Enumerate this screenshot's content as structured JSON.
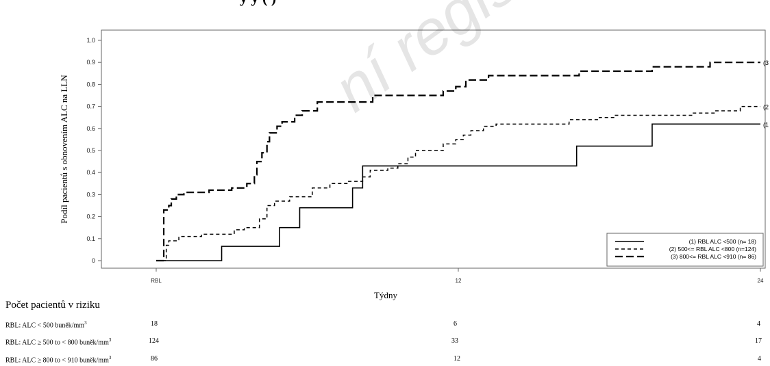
{
  "header": {
    "title_fragment": "y               y          (    )"
  },
  "watermark": {
    "text": "ní registrován"
  },
  "risk_table": {
    "title": "Počet pacientů v riziku",
    "rows": [
      {
        "label": "RBL: ALC < 500 buněk/mm",
        "sup": "3",
        "values": [
          "18",
          "6",
          "4"
        ]
      },
      {
        "label": "RBL: ALC ≥ 500 to < 800 buněk/mm",
        "sup": "3",
        "values": [
          "124",
          "33",
          "17"
        ]
      },
      {
        "label": "RBL: ALC ≥ 800 to < 910 buněk/mm",
        "sup": "3",
        "values": [
          "86",
          "12",
          "4"
        ]
      }
    ]
  },
  "chart_data": {
    "type": "line",
    "step": true,
    "title": "",
    "xlabel": "Týdny",
    "ylabel": "Podíl pacientů  s obnovením ALC na LLN",
    "xlim": [
      0,
      24
    ],
    "ylim": [
      0,
      1.0
    ],
    "x_ticks": [
      {
        "value": 0,
        "label": "RBL"
      },
      {
        "value": 12,
        "label": "12"
      },
      {
        "value": 24,
        "label": "24"
      }
    ],
    "y_ticks": [
      "0",
      "0.1",
      "0.2",
      "0.3",
      "0.4",
      "0.5",
      "0.6",
      "0.7",
      "0.8",
      "0.9",
      "1.0"
    ],
    "grid": false,
    "legend_position": "bottom-right",
    "series": [
      {
        "name": "(1) RBL ALC <500 (n= 18)",
        "end_label": "(1",
        "dash": "solid",
        "points": [
          [
            0,
            0
          ],
          [
            0.2,
            0
          ],
          [
            2.6,
            0
          ],
          [
            2.6,
            0.065
          ],
          [
            4.9,
            0.065
          ],
          [
            4.9,
            0.15
          ],
          [
            5.7,
            0.15
          ],
          [
            5.7,
            0.24
          ],
          [
            7.8,
            0.24
          ],
          [
            7.8,
            0.33
          ],
          [
            8.2,
            0.33
          ],
          [
            8.2,
            0.43
          ],
          [
            16.7,
            0.43
          ],
          [
            16.7,
            0.52
          ],
          [
            19.7,
            0.52
          ],
          [
            19.7,
            0.62
          ],
          [
            24,
            0.62
          ]
        ]
      },
      {
        "name": "(2) 500<= RBL ALC <800 (n=124)",
        "end_label": "(2",
        "dash": "short",
        "points": [
          [
            0,
            0
          ],
          [
            0.3,
            0
          ],
          [
            0.4,
            0.07
          ],
          [
            0.5,
            0.09
          ],
          [
            0.9,
            0.11
          ],
          [
            1.8,
            0.12
          ],
          [
            3.1,
            0.14
          ],
          [
            3.5,
            0.15
          ],
          [
            4.1,
            0.19
          ],
          [
            4.4,
            0.25
          ],
          [
            4.7,
            0.27
          ],
          [
            5.3,
            0.29
          ],
          [
            6.2,
            0.33
          ],
          [
            6.9,
            0.35
          ],
          [
            7.6,
            0.36
          ],
          [
            8.2,
            0.38
          ],
          [
            8.5,
            0.41
          ],
          [
            9.2,
            0.42
          ],
          [
            9.6,
            0.44
          ],
          [
            10.0,
            0.47
          ],
          [
            10.3,
            0.5
          ],
          [
            11.0,
            0.5
          ],
          [
            11.4,
            0.53
          ],
          [
            11.9,
            0.55
          ],
          [
            12.2,
            0.57
          ],
          [
            12.5,
            0.59
          ],
          [
            13.0,
            0.61
          ],
          [
            13.5,
            0.62
          ],
          [
            15.8,
            0.62
          ],
          [
            16.4,
            0.64
          ],
          [
            17.6,
            0.65
          ],
          [
            18.2,
            0.66
          ],
          [
            20.6,
            0.66
          ],
          [
            21.3,
            0.67
          ],
          [
            22.2,
            0.68
          ],
          [
            23.2,
            0.7
          ],
          [
            24,
            0.7
          ]
        ]
      },
      {
        "name": "(3) 800<= RBL ALC <910 (n= 86)",
        "end_label": "(3",
        "dash": "long",
        "points": [
          [
            0,
            0
          ],
          [
            0.3,
            0
          ],
          [
            0.3,
            0.23
          ],
          [
            0.5,
            0.25
          ],
          [
            0.6,
            0.28
          ],
          [
            0.8,
            0.3
          ],
          [
            1.1,
            0.31
          ],
          [
            2.1,
            0.32
          ],
          [
            3.0,
            0.33
          ],
          [
            3.6,
            0.35
          ],
          [
            3.9,
            0.39
          ],
          [
            4.0,
            0.45
          ],
          [
            4.2,
            0.49
          ],
          [
            4.4,
            0.54
          ],
          [
            4.5,
            0.58
          ],
          [
            4.8,
            0.61
          ],
          [
            5.0,
            0.63
          ],
          [
            5.5,
            0.66
          ],
          [
            5.8,
            0.68
          ],
          [
            6.4,
            0.72
          ],
          [
            8.6,
            0.75
          ],
          [
            11.4,
            0.77
          ],
          [
            11.9,
            0.79
          ],
          [
            12.3,
            0.82
          ],
          [
            13.0,
            0.82
          ],
          [
            13.2,
            0.84
          ],
          [
            16.2,
            0.84
          ],
          [
            16.8,
            0.86
          ],
          [
            19.1,
            0.86
          ],
          [
            19.7,
            0.88
          ],
          [
            21.3,
            0.88
          ],
          [
            22.0,
            0.9
          ],
          [
            24,
            0.9
          ]
        ]
      }
    ]
  }
}
